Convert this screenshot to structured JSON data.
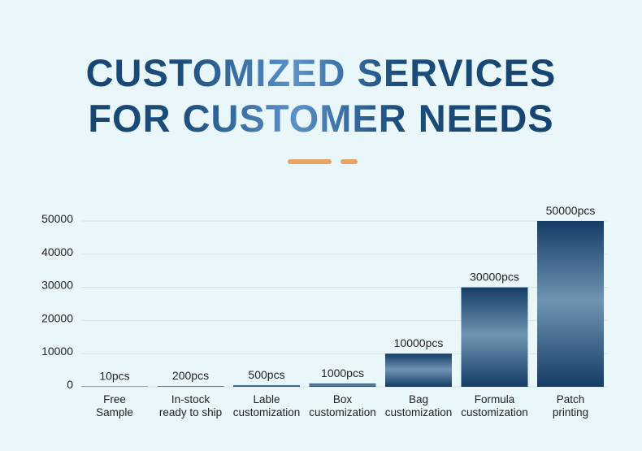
{
  "header": {
    "title_line1": "CUSTOMIZED SERVICES",
    "title_line2": "FOR CUSTOMER NEEDS"
  },
  "colors": {
    "background": "#e9f7fb",
    "title_dark": "#123e68",
    "title_light": "#5a91c9",
    "bar_dark": "#143d66",
    "bar_light": "#6f94b3",
    "accent_dash": "#e6a565",
    "gridline": "#d7e2e6"
  },
  "chart_data": {
    "type": "bar",
    "title": "",
    "xlabel": "",
    "ylabel": "",
    "ylim": [
      0,
      50000
    ],
    "yticks": [
      "0",
      "10000",
      "20000",
      "30000",
      "40000",
      "50000"
    ],
    "grid": true,
    "legend": "none",
    "categories": [
      [
        "Free",
        "Sample"
      ],
      [
        "In-stock",
        "ready to ship"
      ],
      [
        "Lable",
        "customization"
      ],
      [
        "Box",
        "customization"
      ],
      [
        "Bag",
        "customization"
      ],
      [
        "Formula",
        "customization"
      ],
      [
        "Patch",
        "printing"
      ]
    ],
    "values": [
      10,
      200,
      500,
      1000,
      10000,
      30000,
      50000
    ],
    "data_labels": [
      "10pcs",
      "200pcs",
      "500pcs",
      "1000pcs",
      "10000pcs",
      "30000pcs",
      "50000pcs"
    ]
  }
}
